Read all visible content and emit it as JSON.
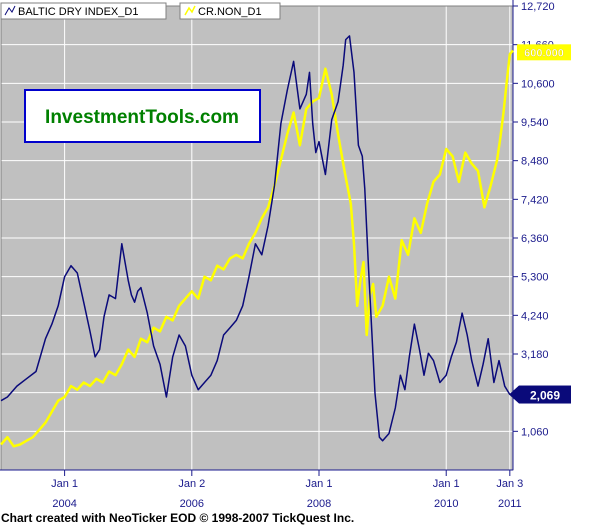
{
  "footer": "Chart created with NeoTicker EOD © 1998-2007 TickQuest Inc.",
  "watermark": "InvestmentTools.com",
  "chart_data": {
    "type": "line",
    "grid": true,
    "background": "#c0c0c0",
    "grid_color": "#ffffff",
    "legend_placement": "top-left",
    "ylim": [
      0,
      12720
    ],
    "yticks": [
      1060,
      2120,
      3180,
      4240,
      5300,
      6360,
      7420,
      8480,
      9540,
      10600,
      11660,
      12720
    ],
    "ytick_labels": [
      "1,060",
      "",
      "3,180",
      "4,240",
      "5,300",
      "6,360",
      "7,420",
      "8,480",
      "9,540",
      "10,600",
      "11,660",
      "12,720"
    ],
    "xlim": [
      2003.0,
      2011.05
    ],
    "xticks": [
      {
        "x": 2004.0,
        "top": "Jan 1",
        "bottom": "2004"
      },
      {
        "x": 2006.0,
        "top": "Jan 2",
        "bottom": "2006"
      },
      {
        "x": 2008.0,
        "top": "Jan 1",
        "bottom": "2008"
      },
      {
        "x": 2010.0,
        "top": "Jan 1",
        "bottom": "2010"
      },
      {
        "x": 2011.0,
        "top": "Jan 3",
        "bottom": "2011"
      }
    ],
    "series": [
      {
        "name": "BALTIC DRY INDEX_D1",
        "color": "#0a0a7a",
        "last_label": "2,069",
        "x": [
          2003.0,
          2003.1,
          2003.25,
          2003.4,
          2003.55,
          2003.7,
          2003.8,
          2003.9,
          2004.0,
          2004.1,
          2004.2,
          2004.3,
          2004.4,
          2004.48,
          2004.55,
          2004.62,
          2004.7,
          2004.8,
          2004.9,
          2005.0,
          2005.05,
          2005.1,
          2005.15,
          2005.2,
          2005.3,
          2005.4,
          2005.5,
          2005.6,
          2005.7,
          2005.8,
          2005.9,
          2006.0,
          2006.1,
          2006.2,
          2006.3,
          2006.4,
          2006.5,
          2006.6,
          2006.7,
          2006.8,
          2006.9,
          2007.0,
          2007.1,
          2007.2,
          2007.3,
          2007.4,
          2007.5,
          2007.6,
          2007.7,
          2007.8,
          2007.85,
          2007.9,
          2007.95,
          2008.0,
          2008.1,
          2008.2,
          2008.3,
          2008.38,
          2008.42,
          2008.48,
          2008.55,
          2008.62,
          2008.68,
          2008.72,
          2008.78,
          2008.83,
          2008.88,
          2008.95,
          2009.0,
          2009.1,
          2009.2,
          2009.28,
          2009.35,
          2009.42,
          2009.5,
          2009.58,
          2009.65,
          2009.72,
          2009.8,
          2009.9,
          2010.0,
          2010.08,
          2010.16,
          2010.25,
          2010.33,
          2010.4,
          2010.5,
          2010.58,
          2010.66,
          2010.75,
          2010.83,
          2010.92,
          2011.0
        ],
        "y": [
          1900,
          2000,
          2300,
          2500,
          2700,
          3600,
          4000,
          4500,
          5300,
          5600,
          5400,
          4600,
          3800,
          3100,
          3300,
          4200,
          4800,
          4700,
          6200,
          5200,
          4800,
          4600,
          4900,
          5000,
          4300,
          3400,
          2900,
          2000,
          3100,
          3700,
          3400,
          2600,
          2200,
          2400,
          2600,
          3000,
          3700,
          3900,
          4100,
          4500,
          5300,
          6200,
          5900,
          6700,
          7800,
          9500,
          10400,
          11200,
          9900,
          10300,
          10900,
          9500,
          8700,
          9000,
          8100,
          9600,
          10100,
          11100,
          11800,
          11900,
          10900,
          8900,
          8600,
          7700,
          5500,
          3800,
          2100,
          900,
          800,
          1000,
          1700,
          2600,
          2200,
          3100,
          4000,
          3300,
          2600,
          3200,
          3000,
          2400,
          2600,
          3100,
          3500,
          4300,
          3700,
          3000,
          2300,
          2900,
          3600,
          2400,
          3000,
          2300,
          2069
        ]
      },
      {
        "name": "CR.NON_D1",
        "color": "#ffff00",
        "last_label": "600.000",
        "x": [
          2003.0,
          2003.1,
          2003.2,
          2003.3,
          2003.4,
          2003.5,
          2003.6,
          2003.7,
          2003.8,
          2003.9,
          2004.0,
          2004.1,
          2004.2,
          2004.3,
          2004.4,
          2004.5,
          2004.6,
          2004.7,
          2004.8,
          2004.9,
          2005.0,
          2005.1,
          2005.2,
          2005.3,
          2005.4,
          2005.5,
          2005.6,
          2005.7,
          2005.8,
          2005.9,
          2006.0,
          2006.1,
          2006.2,
          2006.3,
          2006.4,
          2006.5,
          2006.6,
          2006.7,
          2006.8,
          2006.9,
          2007.0,
          2007.1,
          2007.2,
          2007.3,
          2007.4,
          2007.5,
          2007.6,
          2007.7,
          2007.8,
          2007.9,
          2008.0,
          2008.1,
          2008.2,
          2008.3,
          2008.4,
          2008.5,
          2008.55,
          2008.6,
          2008.65,
          2008.7,
          2008.75,
          2008.8,
          2008.85,
          2008.9,
          2009.0,
          2009.1,
          2009.2,
          2009.3,
          2009.4,
          2009.5,
          2009.6,
          2009.7,
          2009.8,
          2009.9,
          2010.0,
          2010.1,
          2010.2,
          2010.3,
          2010.4,
          2010.5,
          2010.6,
          2010.7,
          2010.8,
          2010.85,
          2010.9,
          2010.95,
          2011.0,
          2011.05
        ],
        "y": [
          700,
          900,
          650,
          700,
          800,
          900,
          1100,
          1300,
          1600,
          1900,
          2000,
          2300,
          2200,
          2400,
          2300,
          2500,
          2400,
          2700,
          2600,
          2900,
          3300,
          3100,
          3600,
          3500,
          3900,
          3800,
          4200,
          4100,
          4500,
          4700,
          4900,
          4700,
          5300,
          5200,
          5600,
          5500,
          5800,
          5900,
          5800,
          6200,
          6500,
          6900,
          7200,
          7800,
          8500,
          9200,
          9800,
          8900,
          9900,
          10100,
          10200,
          11000,
          10300,
          9200,
          8200,
          7300,
          6200,
          4500,
          5200,
          5700,
          3700,
          4800,
          5100,
          4200,
          4500,
          5300,
          4700,
          6300,
          5900,
          6900,
          6500,
          7300,
          7900,
          8100,
          8800,
          8600,
          7900,
          8700,
          8400,
          8200,
          7200,
          7800,
          8500,
          9100,
          9800,
          10600,
          11400,
          11500
        ]
      }
    ]
  }
}
